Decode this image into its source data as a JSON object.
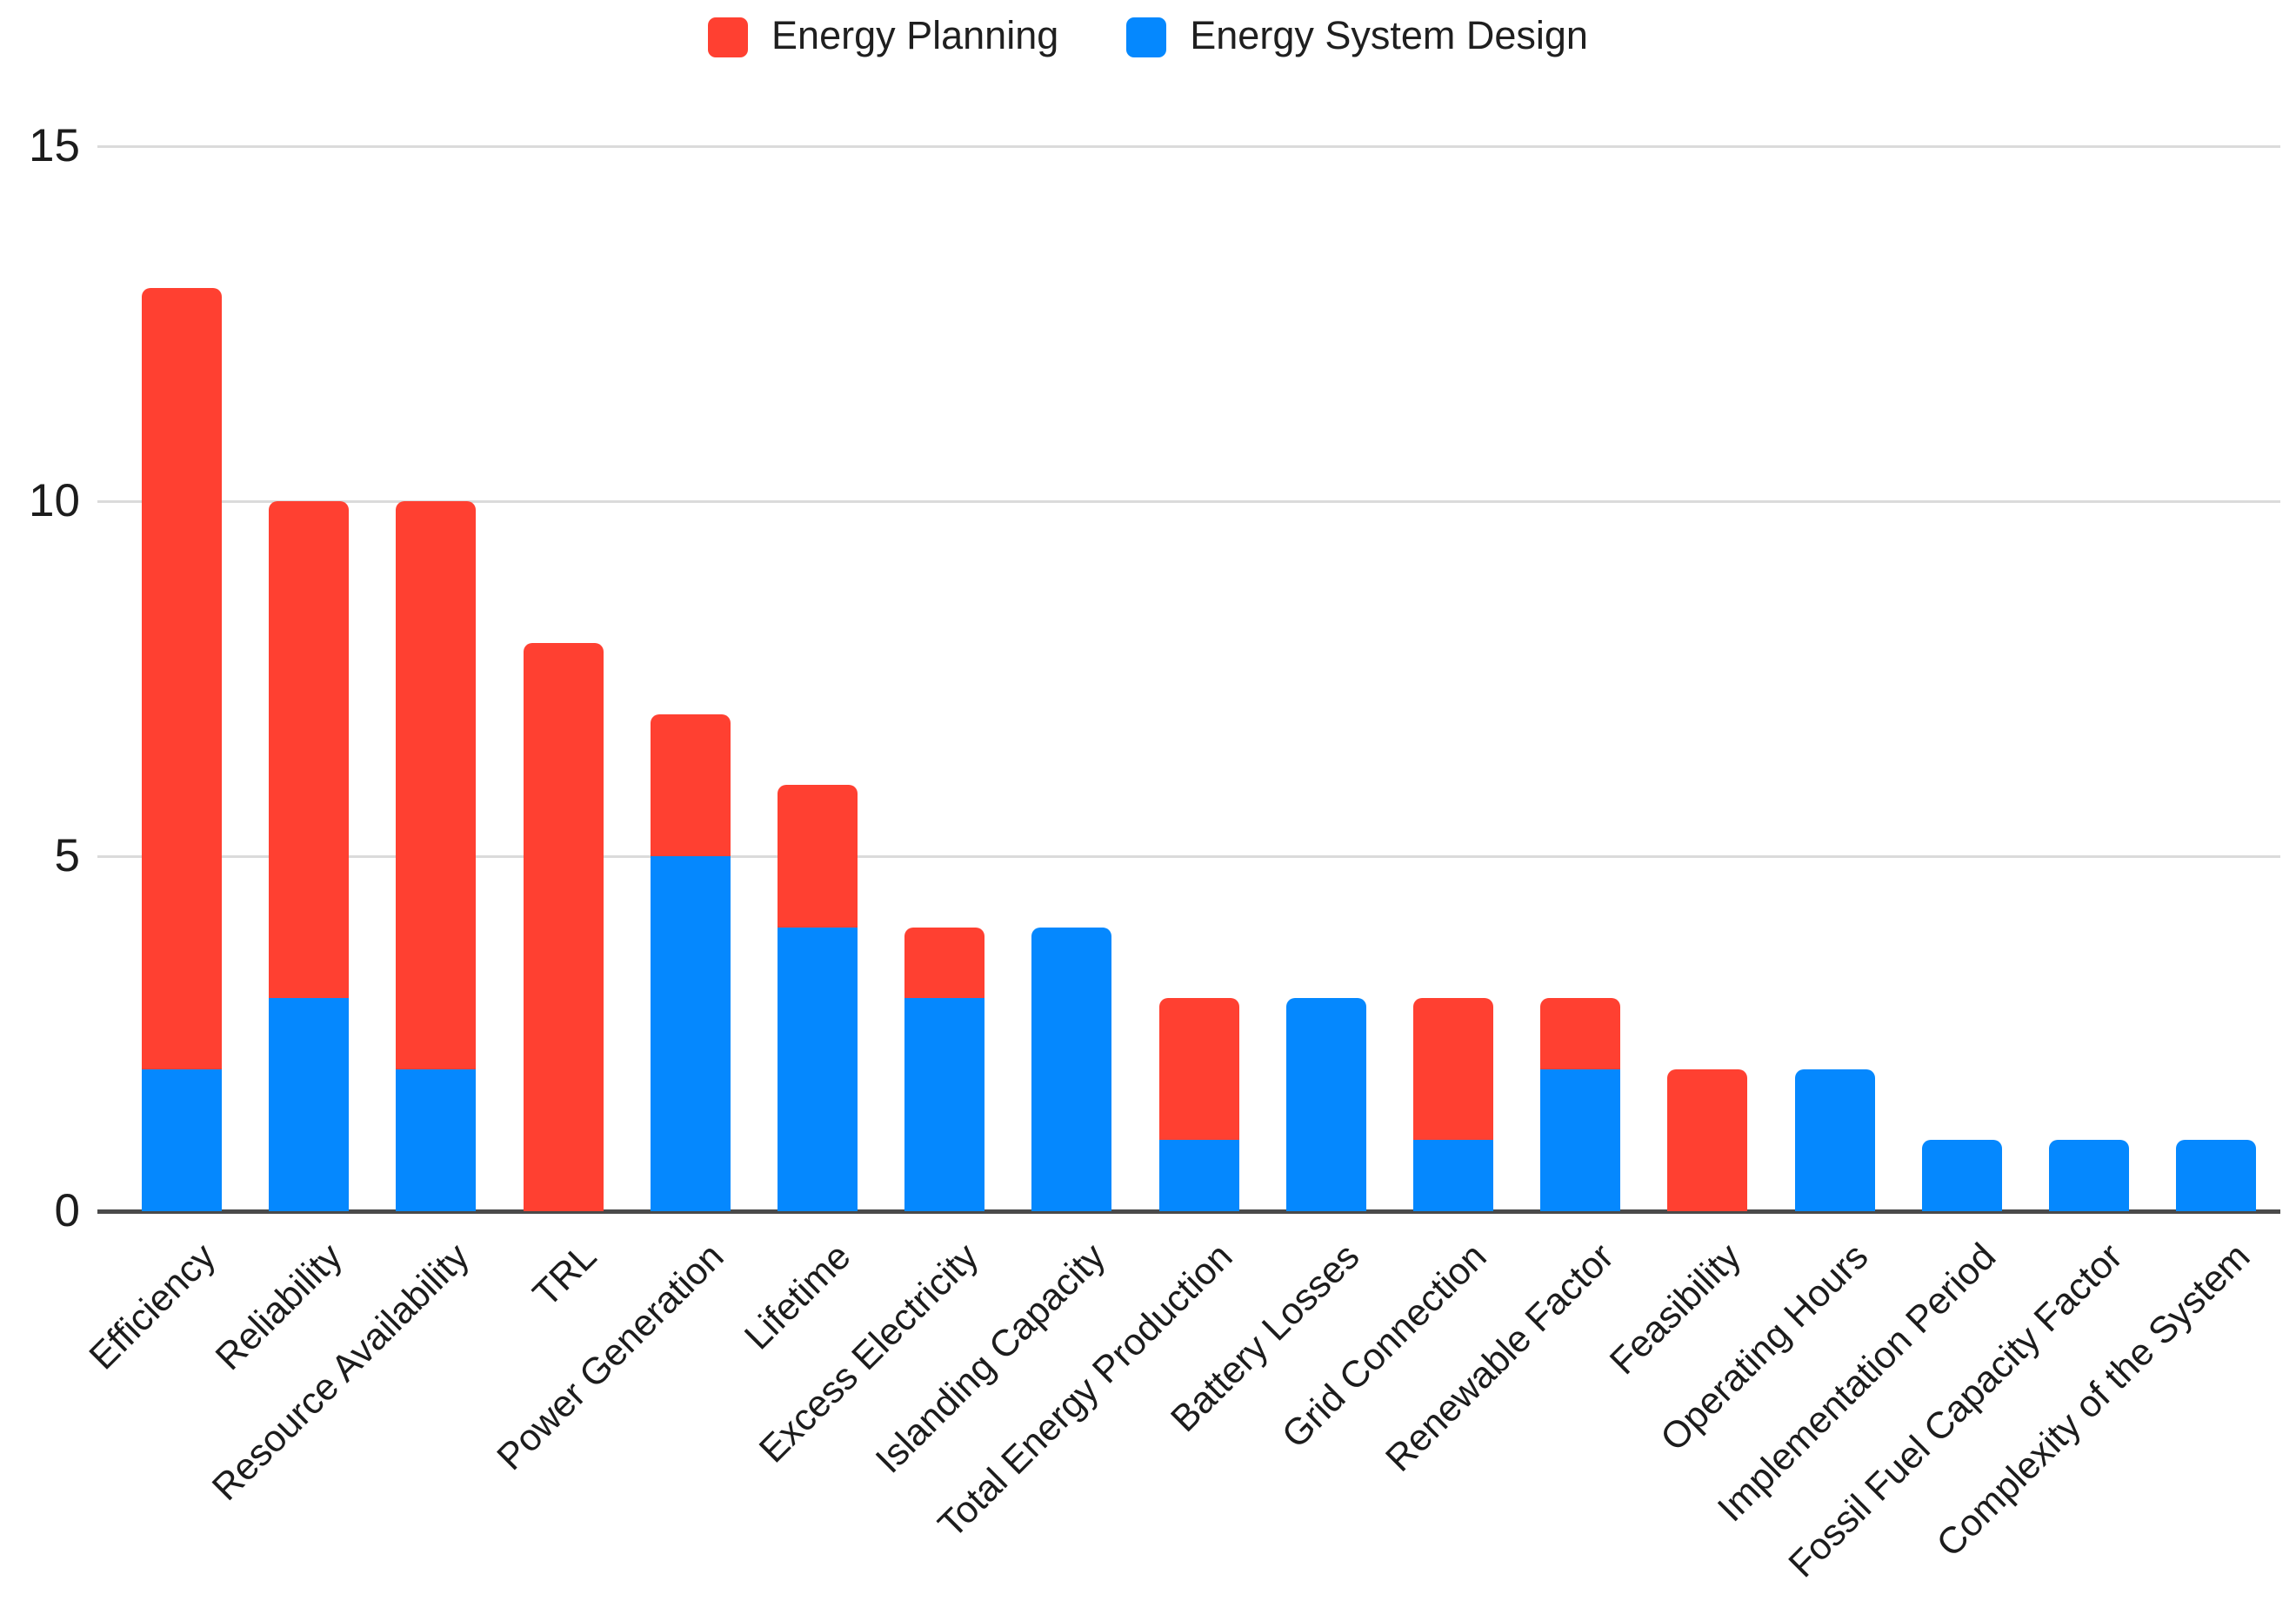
{
  "legend": {
    "items": [
      {
        "label": "Energy Planning",
        "color": "#FF4031"
      },
      {
        "label": "Energy System Design",
        "color": "#0588FE"
      }
    ]
  },
  "chart_data": {
    "type": "bar",
    "stacked": true,
    "title": "",
    "xlabel": "",
    "ylabel": "",
    "categories": [
      "Efficiency",
      "Reliability",
      "Resource Availability",
      "TRL",
      "Power Generation",
      "Lifetime",
      "Excess Electricity",
      "Islanding Capacity",
      "Total Energy Production",
      "Battery Losses",
      "Grid Connection",
      "Renewable Factor",
      "Feasibility",
      "Operating Hours",
      "Implementation Period",
      "Fossil Fuel Capacity Factor",
      "Complexity of the System"
    ],
    "series": [
      {
        "name": "Energy System Design",
        "color": "#0588FE",
        "stack_position": "bottom",
        "values": [
          2,
          3,
          2,
          0,
          5,
          4,
          3,
          4,
          1,
          3,
          1,
          2,
          0,
          2,
          1,
          1,
          1
        ]
      },
      {
        "name": "Energy Planning",
        "color": "#FF4031",
        "stack_position": "top",
        "values": [
          11,
          7,
          8,
          8,
          2,
          2,
          1,
          0,
          2,
          0,
          2,
          1,
          2,
          0,
          0,
          0,
          0
        ]
      }
    ],
    "stack_totals": [
      13,
      10,
      10,
      8,
      7,
      6,
      4,
      4,
      3,
      3,
      3,
      3,
      2,
      2,
      1,
      1,
      1
    ],
    "yticks": [
      0,
      5,
      10,
      15
    ],
    "ytick_labels": [
      "0",
      "5",
      "10",
      "15"
    ],
    "ylim": [
      0,
      15
    ],
    "grid": true,
    "legend_position": "top-center",
    "x_label_rotation_deg": -45,
    "grid_color": "#DBDBDB",
    "axis_color": "#4A4A4A",
    "text_color": "#1C1C1C",
    "background_color": "#FFFFFF"
  }
}
